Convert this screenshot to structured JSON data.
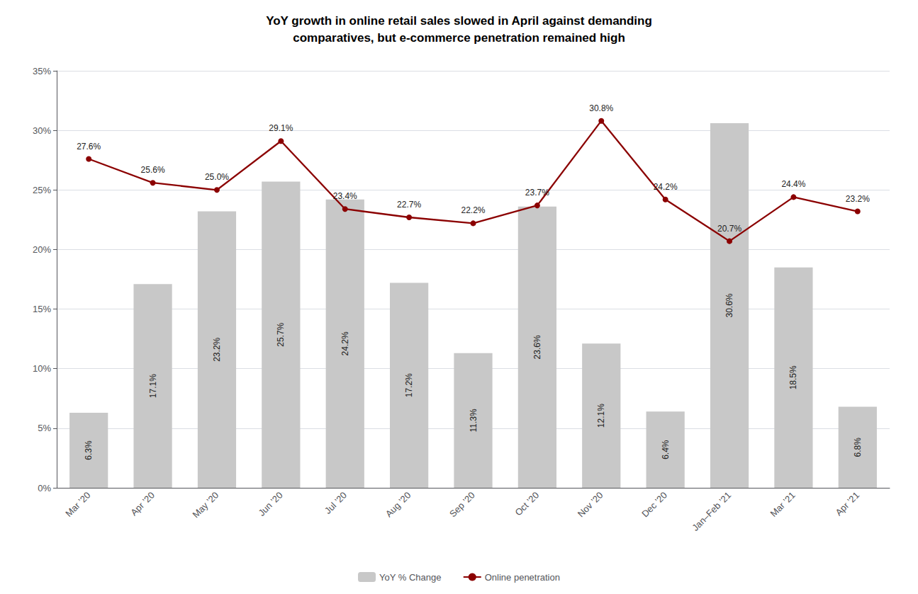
{
  "chart_data": {
    "type": "bar",
    "title": "YoY growth in online retail sales slowed in April against demanding\ncomparatives, but e-commerce penetration remained high",
    "categories": [
      "Mar ’20",
      "Apr ’20",
      "May ’20",
      "Jun ’20",
      "Jul ’20",
      "Aug ’20",
      "Sep ’20",
      "Oct ’20",
      "Nov ’20",
      "Dec ’20",
      "Jan–Feb ’21",
      "Mar ’21",
      "Apr ’21"
    ],
    "series": [
      {
        "name": "YoY % Change",
        "type": "bar",
        "color": "#c8c8c8",
        "values": [
          6.3,
          17.1,
          23.2,
          25.7,
          24.2,
          17.2,
          11.3,
          23.6,
          12.1,
          6.4,
          30.6,
          18.5,
          6.8
        ],
        "value_labels": [
          "6.3%",
          "17.1%",
          "23.2%",
          "25.7%",
          "24.2%",
          "17.2%",
          "11.3%",
          "23.6%",
          "12.1%",
          "6.4%",
          "30.6%",
          "18.5%",
          "6.8%"
        ]
      },
      {
        "name": "Online penetration",
        "type": "line",
        "color": "#8b0000",
        "marker": "circle",
        "values": [
          27.6,
          25.6,
          25.0,
          29.1,
          23.4,
          22.7,
          22.2,
          23.7,
          30.8,
          24.2,
          20.7,
          24.4,
          23.2
        ],
        "value_labels": [
          "27.6%",
          "25.6%",
          "25.0%",
          "29.1%",
          "23.4%",
          "22.7%",
          "22.2%",
          "23.7%",
          "30.8%",
          "24.2%",
          "20.7%",
          "24.4%",
          "23.2%"
        ]
      }
    ],
    "ylim": [
      0,
      35
    ],
    "yticks": [
      {
        "value": 0,
        "label": "0%"
      },
      {
        "value": 5,
        "label": "5%"
      },
      {
        "value": 10,
        "label": "10%"
      },
      {
        "value": 15,
        "label": "15%"
      },
      {
        "value": 20,
        "label": "20%"
      },
      {
        "value": 25,
        "label": "25%"
      },
      {
        "value": 30,
        "label": "30%"
      },
      {
        "value": 35,
        "label": "35%"
      }
    ],
    "grid": true,
    "legend": "bottom",
    "data_labels": true
  }
}
